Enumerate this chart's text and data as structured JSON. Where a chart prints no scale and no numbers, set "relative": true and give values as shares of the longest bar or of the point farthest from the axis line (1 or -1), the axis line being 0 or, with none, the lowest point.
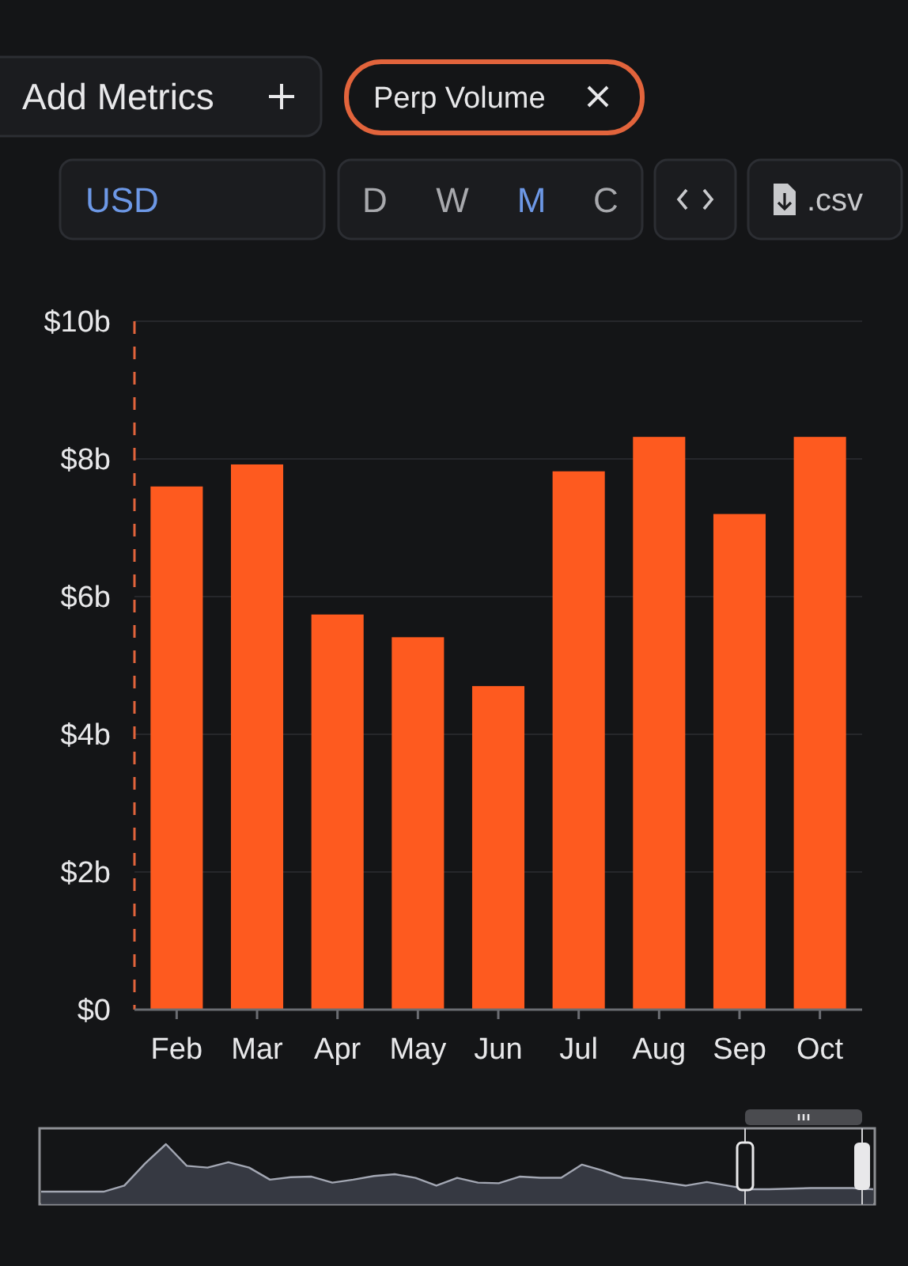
{
  "chart_data": [
    {
      "type": "bar",
      "categories": [
        "Feb",
        "Mar",
        "Apr",
        "May",
        "Jun",
        "Jul",
        "Aug",
        "Sep",
        "Oct"
      ],
      "values": [
        7.6,
        7.92,
        5.74,
        5.41,
        4.7,
        7.82,
        8.32,
        7.2,
        8.32
      ],
      "color": "#fe5a1f",
      "ylim": [
        0,
        10
      ],
      "yticks": [
        {
          "value": 0,
          "label": "$0"
        },
        {
          "value": 2,
          "label": "$2b"
        },
        {
          "value": 4,
          "label": "$4b"
        },
        {
          "value": 6,
          "label": "$6b"
        },
        {
          "value": 8,
          "label": "$8b"
        },
        {
          "value": 10,
          "label": "$10b"
        }
      ],
      "grid": "y",
      "annotations": [
        "Add Metrics",
        "Perp Volume",
        "USD",
        "D",
        "W",
        "M",
        "C",
        ".csv"
      ]
    },
    {
      "type": "area",
      "relative": true,
      "categories": [
        null,
        null,
        null,
        null,
        null,
        null,
        null,
        null,
        null,
        null,
        null,
        null,
        null,
        null,
        null,
        null,
        null,
        null,
        null,
        null,
        null,
        null,
        null,
        null,
        null,
        null,
        null,
        null,
        null,
        null,
        null,
        null,
        null,
        null,
        null,
        null,
        null,
        null,
        null,
        null,
        null
      ],
      "color": "#a3a7b3",
      "values": [
        0.21,
        0.21,
        0.21,
        0.21,
        0.31,
        0.68,
        1,
        0.64,
        0.61,
        0.7,
        0.61,
        0.41,
        0.45,
        0.46,
        0.36,
        0.41,
        0.47,
        0.5,
        0.44,
        0.31,
        0.44,
        0.36,
        0.35,
        0.46,
        0.44,
        0.44,
        0.66,
        0.56,
        0.44,
        0.41,
        0.36,
        0.31,
        0.37,
        0.31,
        0.25,
        0.25,
        0.26,
        0.27,
        0.27,
        0.27,
        0.25
      ]
    }
  ]
}
